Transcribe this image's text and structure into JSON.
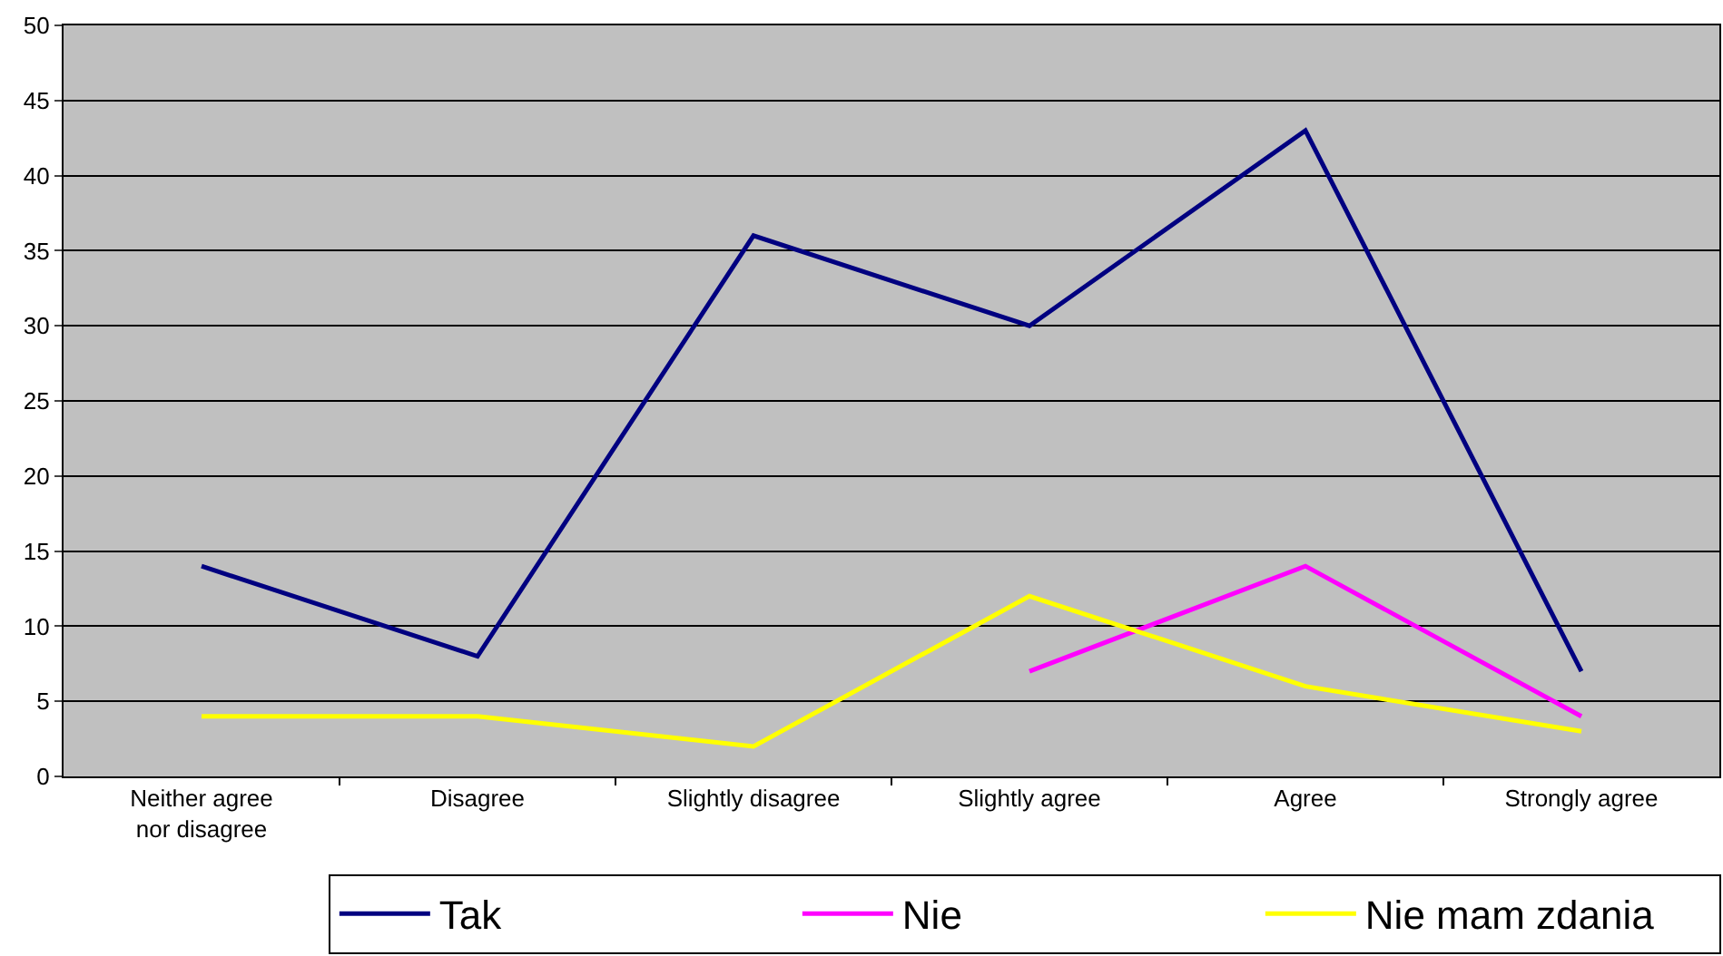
{
  "chart_data": {
    "type": "line",
    "categories": [
      "Neither agree nor disagree",
      "Disagree",
      "Slightly disagree",
      "Slightly agree",
      "Agree",
      "Strongly agree"
    ],
    "series": [
      {
        "name": "Tak",
        "color": "#000080",
        "values": [
          14,
          8,
          36,
          30,
          43,
          7
        ]
      },
      {
        "name": "Nie",
        "color": "#ff00ff",
        "values": [
          null,
          null,
          null,
          7,
          14,
          4
        ]
      },
      {
        "name": "Nie mam zdania",
        "color": "#ffff00",
        "values": [
          4,
          4,
          2,
          12,
          6,
          3
        ]
      }
    ],
    "ylim": [
      0,
      50
    ],
    "yticks": [
      0,
      5,
      10,
      15,
      20,
      25,
      30,
      35,
      40,
      45,
      50
    ],
    "grid": "y",
    "legend": "bottom",
    "marker": "none",
    "line_style": "solid"
  }
}
